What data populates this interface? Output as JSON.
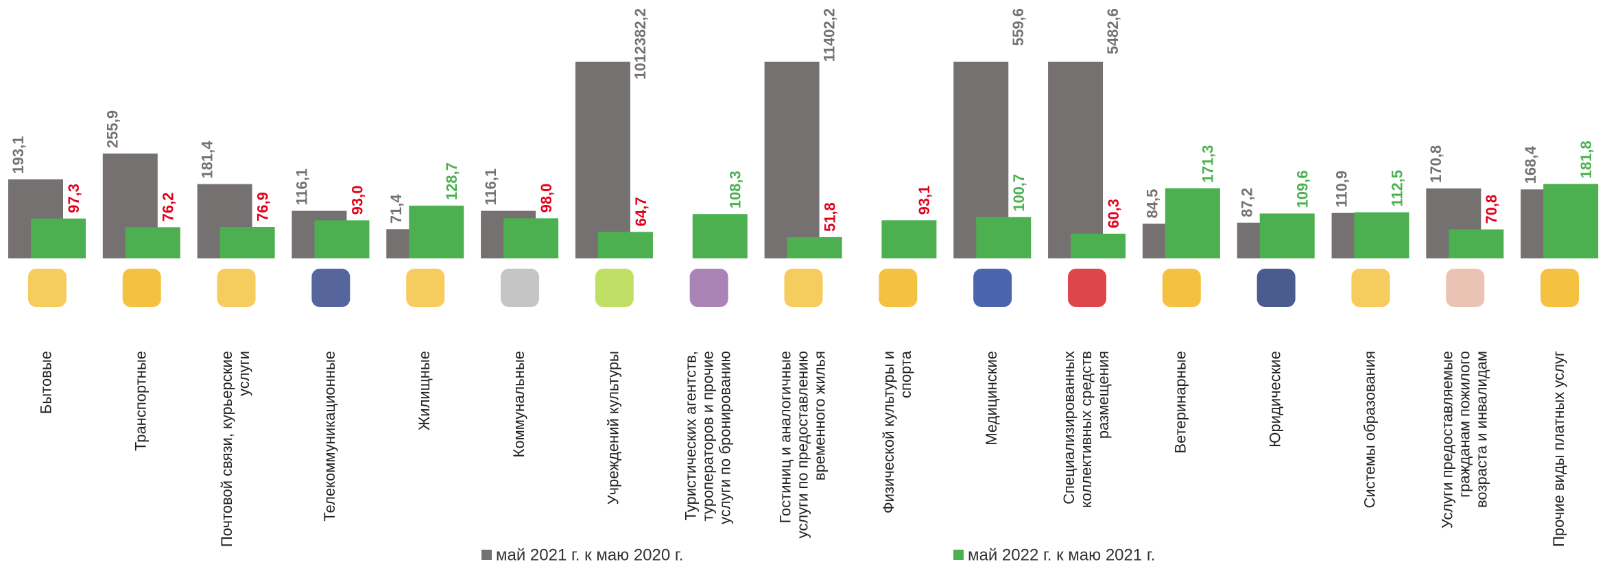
{
  "chart_data": {
    "type": "bar",
    "categories": [
      "Бытовые",
      "Транспортные",
      "Почтовой связи, курьерские\nуслуги",
      "Телекоммуникационные",
      "Жилищные",
      "Коммунальные",
      "Учреждений культуры",
      "Туристических агентств,\nтуроператоров и прочие\nуслуги по бронированию",
      "Гостиниц и аналогичные\nуслуги по предоставлению\nвременного жилья",
      "Физической культуры и\nспорта",
      "Медицинские",
      "Специализированных\nколлективных средств\nразмещения",
      "Ветеринарные",
      "Юридические",
      "Системы образования",
      "Услуги предоставляемые\nгражданам пожилого\nвозраста и инвалидам",
      "Прочие виды платных услуг"
    ],
    "series": [
      {
        "name": "май 2021 г. к маю 2020 г.",
        "color": "#767171",
        "label_color": "#767171",
        "values": [
          193.1,
          255.9,
          181.4,
          116.1,
          71.4,
          116.1,
          1012382.2,
          null,
          11402.2,
          null,
          559.6,
          5482.6,
          84.5,
          87.2,
          110.9,
          170.8,
          168.4
        ],
        "value_labels": [
          "193,1",
          "255,9",
          "181,4",
          "116,1",
          "71,4",
          "116,1",
          "1012382,2",
          null,
          "11402,2",
          null,
          "559,6",
          "5482,6",
          "84,5",
          "87,2",
          "110,9",
          "170,8",
          "168,4"
        ]
      },
      {
        "name": "май 2022 г. к маю 2021 г.",
        "color": "#4cb050",
        "values": [
          97.3,
          76.2,
          76.9,
          93.0,
          128.7,
          98.0,
          64.7,
          108.3,
          51.8,
          93.1,
          100.7,
          60.3,
          171.3,
          109.6,
          112.5,
          70.8,
          181.8
        ],
        "value_labels": [
          "97,3",
          "76,2",
          "76,9",
          "93,0",
          "128,7",
          "98,0",
          "64,7",
          "108,3",
          "51,8",
          "93,1",
          "100,7",
          "60,3",
          "171,3",
          "109,6",
          "112,5",
          "70,8",
          "181,8"
        ],
        "label_colors": [
          "#e3001b",
          "#e3001b",
          "#e3001b",
          "#e3001b",
          "#4cb050",
          "#e3001b",
          "#e3001b",
          "#4cb050",
          "#e3001b",
          "#e3001b",
          "#4cb050",
          "#e3001b",
          "#4cb050",
          "#4cb050",
          "#4cb050",
          "#e3001b",
          "#4cb050"
        ]
      }
    ],
    "ylim": [
      0,
      480
    ]
  }
}
